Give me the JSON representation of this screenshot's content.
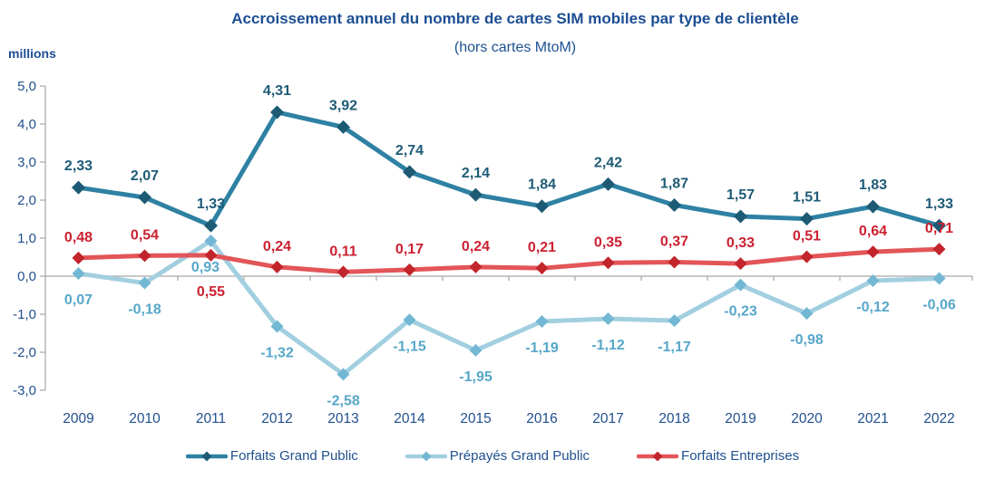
{
  "chart_data": {
    "type": "line",
    "title": "Accroissement annuel du nombre de cartes SIM mobiles par type de clientèle",
    "subtitle": "(hors cartes MtoM)",
    "unit_label": "millions",
    "categories": [
      "2009",
      "2010",
      "2011",
      "2012",
      "2013",
      "2014",
      "2015",
      "2016",
      "2017",
      "2018",
      "2019",
      "2020",
      "2021",
      "2022"
    ],
    "y_ticks": [
      "5,0",
      "4,0",
      "3,0",
      "2,0",
      "1,0",
      "0,0",
      "-1,0",
      "-2,0",
      "-3,0"
    ],
    "ylim": [
      -3,
      5
    ],
    "grid": false,
    "legend_position": "bottom",
    "axis_color": "#A6A6A6",
    "text_color": "#20508F",
    "background_color": "#FFFFFF",
    "series": [
      {
        "name": "Forfaits Grand Public",
        "color": "#2E81A3",
        "marker_color": "#1D5A74",
        "label_color": "#1E5B77",
        "values": [
          2.33,
          2.07,
          1.33,
          4.31,
          3.92,
          2.74,
          2.14,
          1.84,
          2.42,
          1.87,
          1.57,
          1.51,
          1.83,
          1.33
        ],
        "labels": [
          "2,33",
          "2,07",
          "1,33",
          "4,31",
          "3,92",
          "2,74",
          "2,14",
          "1,84",
          "2,42",
          "1,87",
          "1,57",
          "1,51",
          "1,83",
          "1,33"
        ],
        "label_dy": -19,
        "label_overrides": {}
      },
      {
        "name": "Prépayés Grand Public",
        "color": "#A2CFE0",
        "marker_color": "#72B7D3",
        "label_color": "#57A7C9",
        "values": [
          0.07,
          -0.18,
          0.93,
          -1.32,
          -2.58,
          -1.15,
          -1.95,
          -1.19,
          -1.12,
          -1.17,
          -0.23,
          -0.98,
          -0.12,
          -0.06
        ],
        "labels": [
          "0,07",
          "-0,18",
          "0,93",
          "-1,32",
          "-2,58",
          "-1,15",
          "-1,95",
          "-1,19",
          "-1,12",
          "-1,17",
          "-0,23",
          "-0,98",
          "-0,12",
          "-0,06"
        ],
        "label_dy": 34,
        "label_overrides": {
          "2": {
            "dx": -6,
            "dy": 34
          }
        }
      },
      {
        "name": "Forfaits Entreprises",
        "color": "#E25558",
        "marker_color": "#C2252B",
        "label_color": "#CB2030",
        "values": [
          0.48,
          0.54,
          0.55,
          0.24,
          0.11,
          0.17,
          0.24,
          0.21,
          0.35,
          0.37,
          0.33,
          0.51,
          0.64,
          0.71
        ],
        "labels": [
          "0,48",
          "0,54",
          "0,55",
          "0,24",
          "0,11",
          "0,17",
          "0,24",
          "0,21",
          "0,35",
          "0,37",
          "0,33",
          "0,51",
          "0,64",
          "0,71"
        ],
        "label_dy": -18,
        "label_overrides": {
          "2": {
            "dy": 45
          }
        }
      }
    ]
  }
}
